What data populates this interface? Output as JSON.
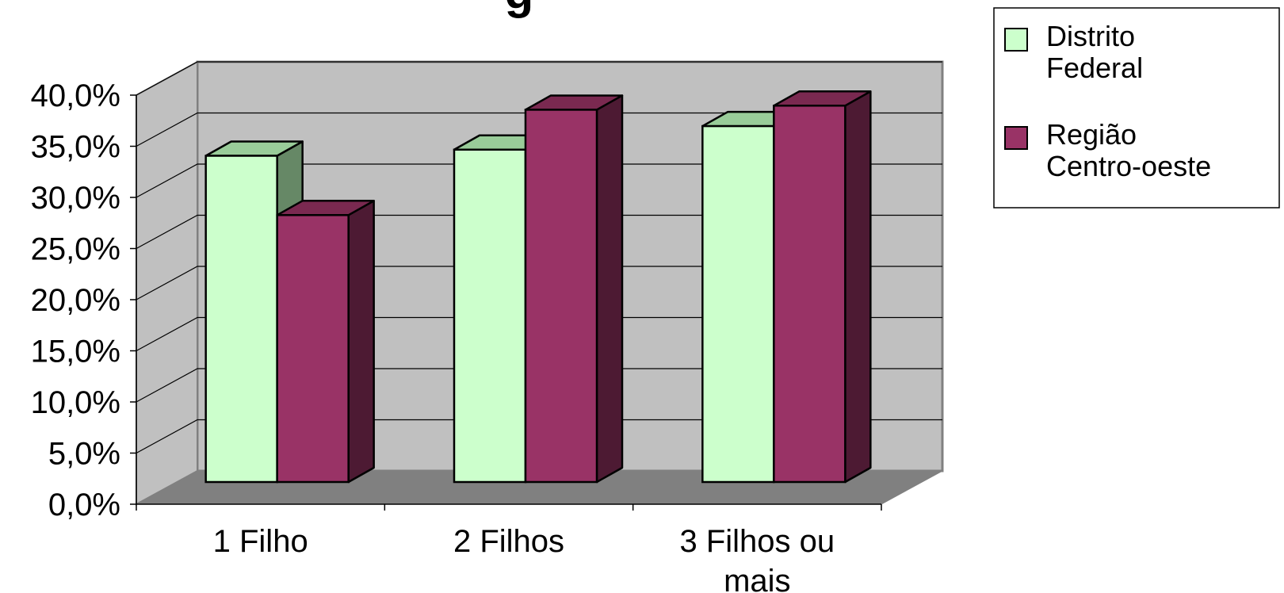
{
  "chart_data": {
    "type": "bar",
    "style": "3d-clustered-column",
    "title": "g",
    "categories": [
      "1 Filho",
      "2 Filhos",
      "3 Filhos ou mais"
    ],
    "series": [
      {
        "name": "Distrito Federal",
        "values": [
          31.9,
          32.5,
          34.8
        ],
        "color": "#ccffcc",
        "top_color": "#99cc99",
        "side_color": "#668866"
      },
      {
        "name": "Região Centro-oeste",
        "values": [
          26.1,
          36.4,
          36.8
        ],
        "color": "#993366",
        "top_color": "#7a2950",
        "side_color": "#4d1a33"
      }
    ],
    "ylim": [
      0,
      40
    ],
    "yticks": [
      "0,0%",
      "5,0%",
      "10,0%",
      "15,0%",
      "20,0%",
      "25,0%",
      "30,0%",
      "35,0%",
      "40,0%"
    ],
    "grid": true,
    "wall_color": "#c0c0c0",
    "floor_color": "#808080",
    "legend_position": "top-right"
  }
}
